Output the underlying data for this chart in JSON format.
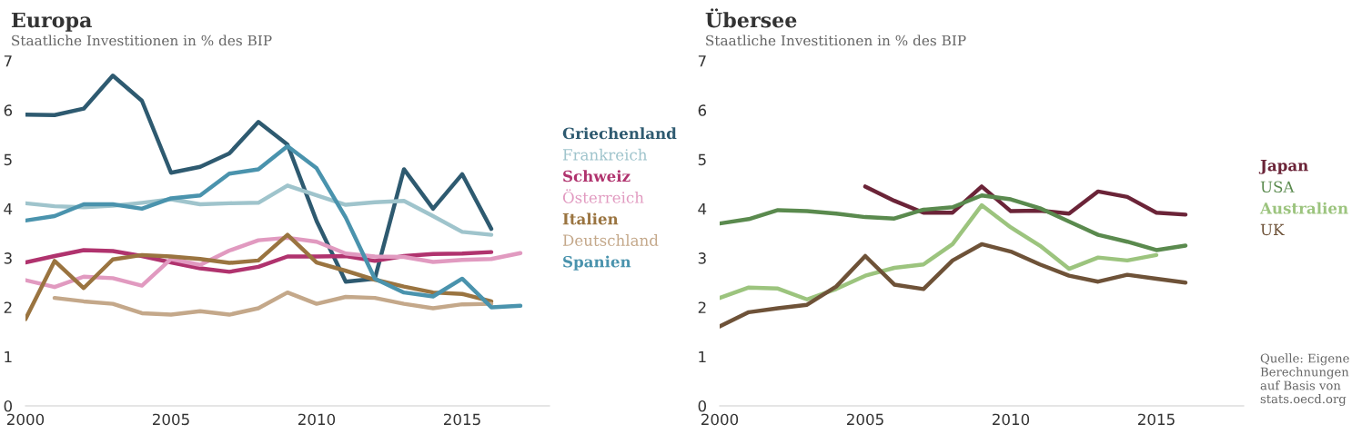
{
  "chart_data": [
    {
      "type": "line",
      "title": "Europa",
      "subtitle": "Staatliche Investitionen in % des BIP",
      "xlim": [
        2000,
        2018
      ],
      "xticks": [
        2000,
        2005,
        2010,
        2015
      ],
      "ylim": [
        0,
        7
      ],
      "yticks": [
        0,
        1,
        2,
        3,
        4,
        5,
        6,
        7
      ],
      "grid": false,
      "legend": "right",
      "series": [
        {
          "name": "Griechenland",
          "color": "#2e5a70",
          "x": [
            2000,
            2001,
            2002,
            2003,
            2004,
            2005,
            2006,
            2007,
            2008,
            2009,
            2010,
            2011,
            2012,
            2013,
            2014,
            2015,
            2016
          ],
          "values": [
            5.91,
            5.9,
            6.03,
            6.7,
            6.19,
            4.73,
            4.85,
            5.12,
            5.76,
            5.3,
            3.75,
            2.52,
            2.58,
            4.8,
            4.0,
            4.7,
            3.59
          ]
        },
        {
          "name": "Frankreich",
          "color": "#9fc4cc",
          "x": [
            2000,
            2001,
            2002,
            2003,
            2004,
            2005,
            2006,
            2007,
            2008,
            2009,
            2010,
            2011,
            2012,
            2013,
            2014,
            2015,
            2016
          ],
          "values": [
            4.11,
            4.05,
            4.03,
            4.06,
            4.12,
            4.19,
            4.09,
            4.11,
            4.12,
            4.47,
            4.27,
            4.08,
            4.13,
            4.16,
            3.85,
            3.53,
            3.47
          ]
        },
        {
          "name": "Schweiz",
          "color": "#b0336e",
          "x": [
            2000,
            2001,
            2002,
            2003,
            2004,
            2005,
            2006,
            2007,
            2008,
            2009,
            2010,
            2011,
            2012,
            2013,
            2014,
            2015,
            2016
          ],
          "values": [
            2.91,
            3.04,
            3.16,
            3.14,
            3.04,
            2.91,
            2.79,
            2.72,
            2.82,
            3.03,
            3.03,
            3.04,
            2.94,
            3.04,
            3.08,
            3.09,
            3.12
          ]
        },
        {
          "name": "Österreich",
          "color": "#e19ac0",
          "x": [
            2000,
            2001,
            2002,
            2003,
            2004,
            2005,
            2006,
            2007,
            2008,
            2009,
            2010,
            2011,
            2012,
            2013,
            2014,
            2015,
            2016,
            2017
          ],
          "values": [
            2.55,
            2.41,
            2.62,
            2.59,
            2.44,
            2.98,
            2.86,
            3.15,
            3.36,
            3.41,
            3.33,
            3.09,
            3.03,
            3.02,
            2.92,
            2.96,
            2.98,
            3.1
          ]
        },
        {
          "name": "Italien",
          "color": "#9a7440",
          "x": [
            2000,
            2001,
            2002,
            2003,
            2004,
            2005,
            2006,
            2007,
            2008,
            2009,
            2010,
            2011,
            2012,
            2013,
            2014,
            2015,
            2016
          ],
          "values": [
            1.76,
            2.94,
            2.39,
            2.97,
            3.06,
            3.03,
            2.98,
            2.9,
            2.95,
            3.47,
            2.91,
            2.74,
            2.56,
            2.42,
            2.3,
            2.27,
            2.12
          ]
        },
        {
          "name": "Deutschland",
          "color": "#c4a88a",
          "x": [
            2001,
            2002,
            2003,
            2004,
            2005,
            2006,
            2007,
            2008,
            2009,
            2010,
            2011,
            2012,
            2013,
            2014,
            2015,
            2016
          ],
          "values": [
            2.19,
            2.12,
            2.07,
            1.88,
            1.85,
            1.92,
            1.85,
            1.98,
            2.3,
            2.07,
            2.21,
            2.19,
            2.07,
            1.98,
            2.06,
            2.07
          ]
        },
        {
          "name": "Spanien",
          "color": "#4a93ad",
          "x": [
            2000,
            2001,
            2002,
            2003,
            2004,
            2005,
            2006,
            2007,
            2008,
            2009,
            2010,
            2011,
            2012,
            2013,
            2014,
            2015,
            2016,
            2017
          ],
          "values": [
            3.76,
            3.85,
            4.09,
            4.09,
            4.0,
            4.21,
            4.27,
            4.71,
            4.8,
            5.27,
            4.82,
            3.82,
            2.58,
            2.3,
            2.22,
            2.58,
            2.0,
            2.03
          ]
        }
      ]
    },
    {
      "type": "line",
      "title": "Übersee",
      "subtitle": "Staatliche Investitionen in % des BIP",
      "xlim": [
        2000,
        2018
      ],
      "xticks": [
        2000,
        2005,
        2010,
        2015
      ],
      "ylim": [
        0,
        7
      ],
      "yticks": [
        0,
        1,
        2,
        3,
        4,
        5,
        6,
        7
      ],
      "grid": false,
      "legend": "right",
      "annotations": [
        "Quelle: Eigene\nBerechnungen\nauf Basis von\nstats.oecd.org"
      ],
      "series": [
        {
          "name": "Japan",
          "color": "#6b2438",
          "x": [
            2005,
            2006,
            2007,
            2008,
            2009,
            2010,
            2011,
            2012,
            2013,
            2014,
            2015,
            2016
          ],
          "values": [
            4.45,
            4.16,
            3.92,
            3.92,
            4.45,
            3.95,
            3.96,
            3.9,
            4.35,
            4.24,
            3.92,
            3.88
          ]
        },
        {
          "name": "USA",
          "color": "#5a8a4e",
          "x": [
            2000,
            2001,
            2002,
            2003,
            2004,
            2005,
            2006,
            2007,
            2008,
            2009,
            2010,
            2011,
            2012,
            2013,
            2014,
            2015,
            2016
          ],
          "values": [
            3.7,
            3.79,
            3.97,
            3.95,
            3.9,
            3.83,
            3.8,
            3.98,
            4.03,
            4.27,
            4.19,
            4.01,
            3.74,
            3.47,
            3.33,
            3.16,
            3.25
          ]
        },
        {
          "name": "Australien",
          "color": "#9cc47e",
          "x": [
            2000,
            2001,
            2002,
            2003,
            2004,
            2005,
            2006,
            2007,
            2008,
            2009,
            2010,
            2011,
            2012,
            2013,
            2014,
            2015
          ],
          "values": [
            2.19,
            2.4,
            2.38,
            2.16,
            2.37,
            2.64,
            2.8,
            2.87,
            3.28,
            4.07,
            3.62,
            3.25,
            2.78,
            3.01,
            2.95,
            3.06
          ]
        },
        {
          "name": "UK",
          "color": "#6e5238",
          "x": [
            2000,
            2001,
            2002,
            2003,
            2004,
            2005,
            2006,
            2007,
            2008,
            2009,
            2010,
            2011,
            2012,
            2013,
            2014,
            2015,
            2016
          ],
          "values": [
            1.61,
            1.9,
            1.98,
            2.05,
            2.42,
            3.04,
            2.46,
            2.37,
            2.95,
            3.28,
            3.13,
            2.87,
            2.64,
            2.52,
            2.66,
            2.58,
            2.5
          ]
        }
      ]
    }
  ]
}
